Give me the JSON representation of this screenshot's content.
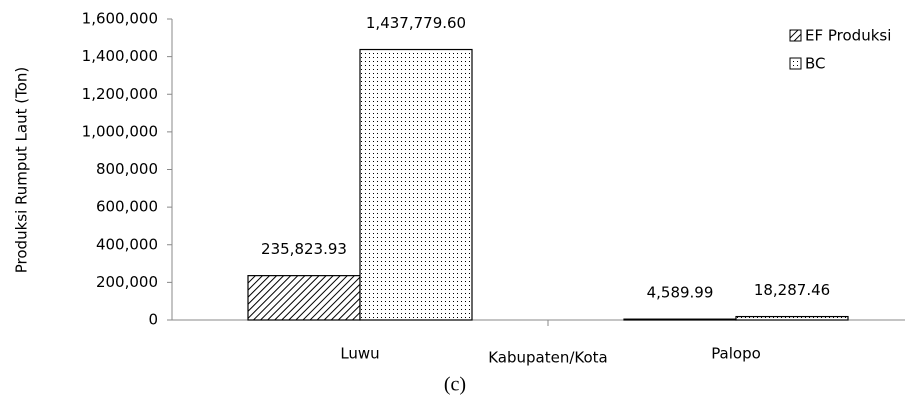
{
  "chart_data": {
    "type": "bar",
    "caption": "(c)",
    "x_label": "Kabupaten/Kota",
    "y_label": "Produksi Rumput Laut (Ton)",
    "categories": [
      "Luwu",
      "Palopo"
    ],
    "series": [
      {
        "name": "EF Produksi",
        "color": "#000000",
        "values": [
          235823.93,
          4589.99
        ],
        "value_labels": [
          "235,823.93",
          "4,589.99"
        ]
      },
      {
        "name": "BC",
        "color": "#000000",
        "values": [
          1437779.6,
          18287.46
        ],
        "value_labels": [
          "1,437,779.60",
          "18,287.46"
        ]
      }
    ],
    "ylim": [
      0,
      1600000
    ],
    "yticks": [
      0,
      {
        "value": 200000,
        "label": "200,000"
      },
      {
        "value": 400000,
        "label": "400,000"
      },
      {
        "value": 600000,
        "label": "600,000"
      },
      {
        "value": 800000,
        "label": "800,000"
      },
      {
        "value": 1000000,
        "label": "1,000,000"
      },
      {
        "value": 1200000,
        "label": "1,200,000"
      },
      {
        "value": 1400000,
        "label": "1,400,000"
      },
      {
        "value": 1600000,
        "label": "1,600,000"
      }
    ],
    "grid": false,
    "legend": "top-right"
  }
}
